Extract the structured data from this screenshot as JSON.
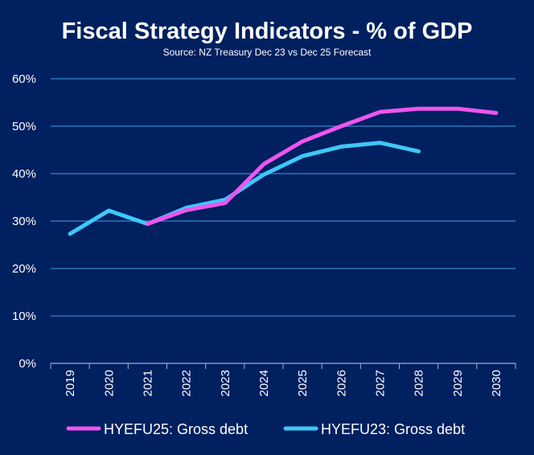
{
  "chart_data": {
    "type": "line",
    "title": "Fiscal Strategy Indicators - % of GDP",
    "subtitle": "Source: NZ Treasury Dec 23 vs Dec 25 Forecast",
    "xlabel": "",
    "ylabel": "",
    "categories": [
      "2019",
      "2020",
      "2021",
      "2022",
      "2023",
      "2024",
      "2025",
      "2026",
      "2027",
      "2028",
      "2029",
      "2030"
    ],
    "y_ticks": [
      "0%",
      "10%",
      "20%",
      "30%",
      "40%",
      "50%",
      "60%"
    ],
    "ylim": [
      0,
      60
    ],
    "grid": true,
    "legend_position": "bottom",
    "series": [
      {
        "name": "HYEFU25: Gross debt",
        "color": "#EE55EE",
        "values": [
          null,
          null,
          29.4,
          32.3,
          33.8,
          42.0,
          46.8,
          50.0,
          53.0,
          53.7,
          53.7,
          52.8
        ]
      },
      {
        "name": "HYEFU23: Gross debt",
        "color": "#3DC8F8",
        "values": [
          27.3,
          32.2,
          29.4,
          32.8,
          34.5,
          39.8,
          43.7,
          45.7,
          46.5,
          44.7,
          null,
          null
        ]
      }
    ]
  }
}
